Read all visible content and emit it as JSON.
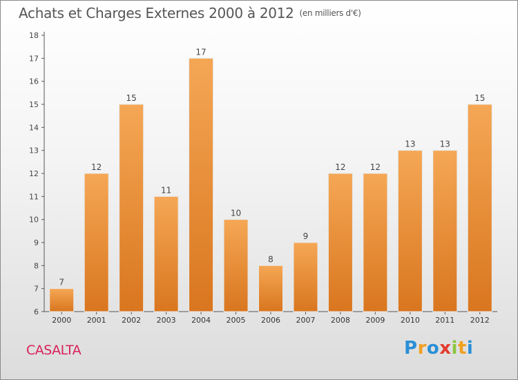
{
  "header": {
    "title": "Achats et Charges Externes 2000 à 2012",
    "unit": "(en milliers d'€)"
  },
  "commune": "CASALTA",
  "logo": {
    "text": "Proxiti",
    "letters": [
      "P",
      "r",
      "o",
      "x",
      "i",
      "t",
      "i"
    ]
  },
  "colors": {
    "bar_light": "#f5a755",
    "bar_dark": "#d9761f",
    "commune_text": "#d9215a"
  },
  "chart_data": {
    "type": "bar",
    "title": "Achats et Charges Externes 2000 à 2012",
    "subtitle": "(en milliers d'€)",
    "xlabel": "",
    "ylabel": "",
    "categories": [
      "2000",
      "2001",
      "2002",
      "2003",
      "2004",
      "2005",
      "2006",
      "2007",
      "2008",
      "2009",
      "2010",
      "2011",
      "2012"
    ],
    "values": [
      7,
      12,
      15,
      11,
      17,
      10,
      8,
      9,
      12,
      12,
      13,
      13,
      15
    ],
    "ylim": [
      6,
      18
    ],
    "yticks": [
      6,
      7,
      8,
      9,
      10,
      11,
      12,
      13,
      14,
      15,
      16,
      17,
      18
    ],
    "grid": false,
    "data_labels": true
  }
}
